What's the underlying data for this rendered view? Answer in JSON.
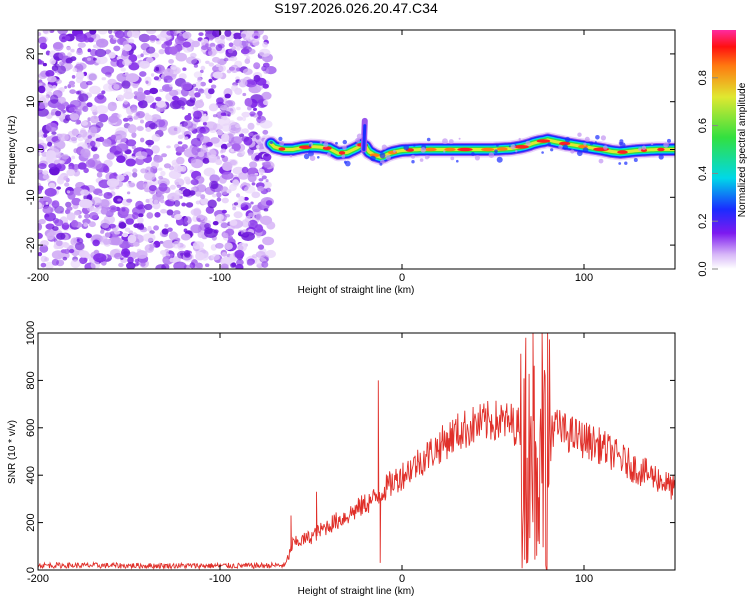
{
  "title": "S197.2026.026.20.47.C34",
  "chart_data": [
    {
      "type": "heatmap",
      "name": "spectrogram",
      "xlabel": "Height of straight line (km)",
      "ylabel": "Frequency (Hz)",
      "xlim": [
        -200,
        150
      ],
      "ylim": [
        -25,
        25
      ],
      "xticks": [
        -200,
        -100,
        0,
        100
      ],
      "yticks": [
        -20,
        -10,
        0,
        10,
        20
      ],
      "noise_region_x": [
        -200,
        -72
      ],
      "ridge_x": [
        -72,
        150
      ],
      "ridge": {
        "x": [
          -72,
          -70,
          -65,
          -60,
          -55,
          -50,
          -45,
          -40,
          -35,
          -30,
          -25,
          -22,
          -20,
          -18,
          -15,
          -12,
          -10,
          -8,
          -5,
          0,
          10,
          20,
          30,
          40,
          50,
          55,
          60,
          63,
          66,
          70,
          72,
          75,
          78,
          80,
          85,
          90,
          95,
          100,
          105,
          110,
          115,
          120,
          125,
          130,
          140,
          150
        ],
        "y": [
          1.2,
          0.5,
          0,
          0,
          0.4,
          0.6,
          0.5,
          0.2,
          -0.8,
          -0.6,
          0.3,
          1.0,
          0.6,
          -0.5,
          -1.2,
          -1.6,
          -1.4,
          -1.0,
          -0.6,
          -0.2,
          0,
          0,
          0,
          0,
          0,
          0.1,
          0.2,
          0.4,
          0.6,
          1.0,
          1.3,
          1.6,
          1.8,
          2.0,
          1.6,
          1.2,
          0.9,
          0.6,
          0.3,
          0,
          -0.4,
          -0.6,
          -0.4,
          -0.2,
          0,
          0
        ]
      },
      "colorbar": {
        "label": "Normalized spectral amplitude",
        "ticks": [
          "0.0",
          "0.2",
          "0.4",
          "0.6",
          "0.8"
        ],
        "range": [
          0,
          1
        ]
      }
    },
    {
      "type": "line",
      "name": "snr",
      "xlabel": "Height of straight line (km)",
      "ylabel": "SNR (10 * v/v)",
      "xlim": [
        -200,
        150
      ],
      "ylim": [
        0,
        1000
      ],
      "xticks": [
        -200,
        -100,
        0,
        100
      ],
      "yticks": [
        0,
        200,
        400,
        600,
        800,
        1000
      ],
      "color": "#e0302a",
      "envelope": {
        "x": [
          -200,
          -140,
          -100,
          -80,
          -64,
          -60,
          -50,
          -40,
          -30,
          -20,
          -15,
          -10,
          0,
          10,
          20,
          30,
          40,
          50,
          60,
          65,
          70,
          75,
          80,
          90,
          100,
          110,
          120,
          130,
          140,
          150
        ],
        "y": [
          20,
          18,
          18,
          18,
          20,
          110,
          140,
          190,
          230,
          280,
          300,
          340,
          400,
          460,
          520,
          580,
          610,
          630,
          620,
          600,
          580,
          600,
          620,
          580,
          550,
          520,
          470,
          420,
          390,
          340
        ]
      },
      "spikes": [
        {
          "x": -61,
          "y": 230
        },
        {
          "x": -47,
          "y": 330
        },
        {
          "x": -13,
          "y": 800
        },
        {
          "x": -12,
          "y": 30
        },
        {
          "x": 60,
          "y": 700
        },
        {
          "x": 68,
          "y": 980
        },
        {
          "x": 69,
          "y": 30
        },
        {
          "x": 72,
          "y": 1000
        },
        {
          "x": 74,
          "y": 60
        },
        {
          "x": 77,
          "y": 1000
        },
        {
          "x": 79,
          "y": 20
        },
        {
          "x": 80,
          "y": 1020
        }
      ]
    }
  ]
}
